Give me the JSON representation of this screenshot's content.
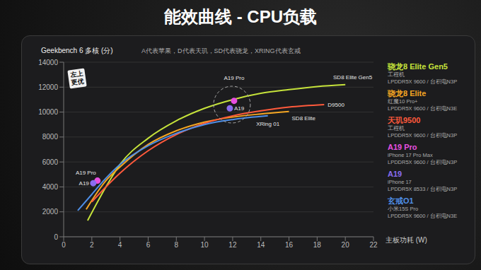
{
  "chart_data": {
    "type": "line",
    "title": "能效曲线 - CPU负载",
    "y_label": "Geekbench 6 多核 (分)",
    "subtitle": "A代表苹果，D代表天玑，SD代表骁龙，XRING代表玄戒",
    "x_label": "主板功耗 (W)",
    "annotation": "左上更优",
    "xlim": [
      0,
      22
    ],
    "xticks": [
      0,
      2,
      4,
      6,
      8,
      10,
      12,
      14,
      16,
      18,
      20,
      22
    ],
    "ylim": [
      0,
      14000
    ],
    "yticks": [
      0,
      2000,
      4000,
      6000,
      8000,
      10000,
      12000,
      14000
    ],
    "grid": true,
    "legend": "right",
    "series": [
      {
        "name": "骁龙8 Elite Gen5",
        "device": "工程机",
        "spec": "LPDDR5X 9600 / 台积电N3P",
        "color": "#c6e33b",
        "type": "line",
        "x": [
          1.7,
          3,
          4,
          6,
          8,
          10,
          12,
          14,
          16,
          18,
          20
        ],
        "values": [
          1300,
          4000,
          5800,
          7900,
          9300,
          10300,
          11000,
          11500,
          11800,
          12050,
          12200
        ],
        "point_labels": [
          null,
          null,
          null,
          null,
          null,
          null,
          null,
          null,
          null,
          null,
          "SD8 Elite Gen5"
        ]
      },
      {
        "name": "骁龙8 Elite",
        "device": "红魔10 Pro+",
        "spec": "LPDDR5X 9600 / 台积电N3E",
        "color": "#f5a623",
        "type": "line",
        "x": [
          1.6,
          3,
          4,
          6,
          8,
          10,
          12,
          14,
          16
        ],
        "values": [
          2200,
          4500,
          5600,
          7400,
          8500,
          9200,
          9600,
          9850,
          10050
        ],
        "point_labels": [
          null,
          null,
          null,
          null,
          null,
          null,
          null,
          null,
          "SD8 Elite"
        ]
      },
      {
        "name": "天玑9500",
        "device": "工程机",
        "spec": "LPDDR5X 9600 / 台积电N3P",
        "color": "#ff5a3c",
        "type": "line",
        "x": [
          2,
          3,
          4,
          6,
          8,
          10,
          12,
          14,
          16,
          18.5
        ],
        "values": [
          2800,
          4000,
          5100,
          6900,
          8200,
          9100,
          9700,
          10100,
          10400,
          10600
        ],
        "point_labels": [
          null,
          null,
          null,
          null,
          null,
          null,
          null,
          null,
          null,
          "D9500"
        ]
      },
      {
        "name": "A19 Pro",
        "device": "iPhone 17 Pro Max",
        "spec": "LPDDR5X 9600 / 台积电N3P",
        "color": "#e84fe0",
        "type": "scatter",
        "x": [
          2.4,
          12.1
        ],
        "values": [
          4500,
          10900
        ],
        "point_labels": [
          "A19 Pro",
          "A19 Pro"
        ]
      },
      {
        "name": "A19",
        "device": "iPhone 17",
        "spec": "LPDDR5X 8533 / 台积电N3P",
        "color": "#8a6cf0",
        "type": "scatter",
        "x": [
          2.1,
          11.8
        ],
        "values": [
          4300,
          10300
        ],
        "point_labels": [
          "A19",
          "A19"
        ]
      },
      {
        "name": "玄戒O1",
        "device": "小米15S Pro",
        "spec": "LPDDR5X 9600 / 台积电N3E",
        "color": "#4f8fe6",
        "type": "line",
        "x": [
          1,
          2,
          3,
          4,
          6,
          8,
          10,
          12,
          14.5
        ],
        "values": [
          2100,
          3400,
          4700,
          5800,
          7300,
          8300,
          9000,
          9400,
          9700
        ],
        "point_labels": [
          null,
          null,
          null,
          null,
          null,
          null,
          null,
          null,
          "XRing 01"
        ]
      }
    ]
  }
}
